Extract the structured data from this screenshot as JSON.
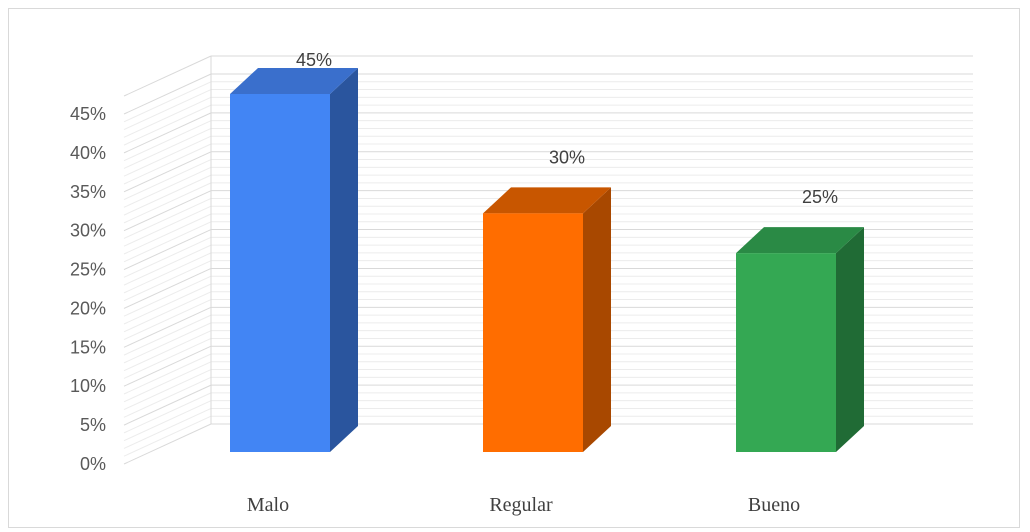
{
  "chart_data": {
    "type": "bar",
    "style": "3d-column",
    "categories": [
      "Malo",
      "Regular",
      "Bueno"
    ],
    "values": [
      45,
      30,
      25
    ],
    "data_labels": [
      "45%",
      "30%",
      "25%"
    ],
    "y_ticks": [
      "0%",
      "5%",
      "10%",
      "15%",
      "20%",
      "25%",
      "30%",
      "35%",
      "40%",
      "45%"
    ],
    "ylim": [
      0,
      45
    ],
    "grid": true,
    "colors": {
      "Malo": {
        "front": "#4285F4",
        "side": "#2A559E",
        "top": "#3A6FCC"
      },
      "Regular": {
        "front": "#FF6D00",
        "side": "#A84800",
        "top": "#C85600"
      },
      "Bueno": {
        "front": "#34A853",
        "side": "#206B35",
        "top": "#2A8A45"
      }
    },
    "gridline_color": "#d9d9d9"
  }
}
